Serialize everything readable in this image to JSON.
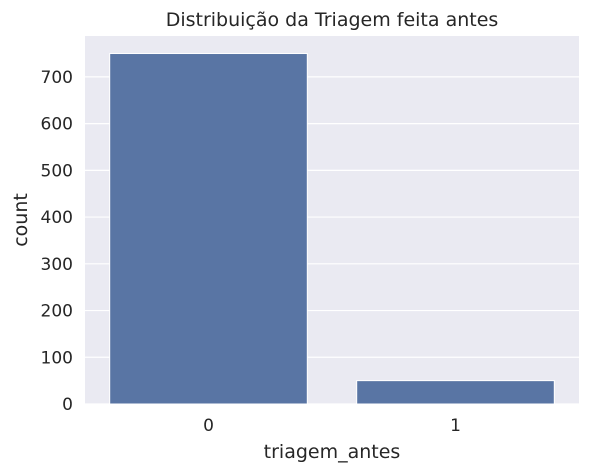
{
  "chart_data": {
    "type": "bar",
    "title": "Distribuição da Triagem feita antes",
    "xlabel": "triagem_antes",
    "ylabel": "count",
    "categories": [
      "0",
      "1"
    ],
    "values": [
      750,
      50
    ],
    "ylim": [
      0,
      787.5
    ],
    "yticks": [
      0,
      100,
      200,
      300,
      400,
      500,
      600,
      700
    ],
    "grid": true,
    "legend": "none",
    "colors": {
      "bar": "#5975a4",
      "plot_background": "#eaeaf2",
      "grid": "#ffffff",
      "text": "#262626"
    }
  }
}
